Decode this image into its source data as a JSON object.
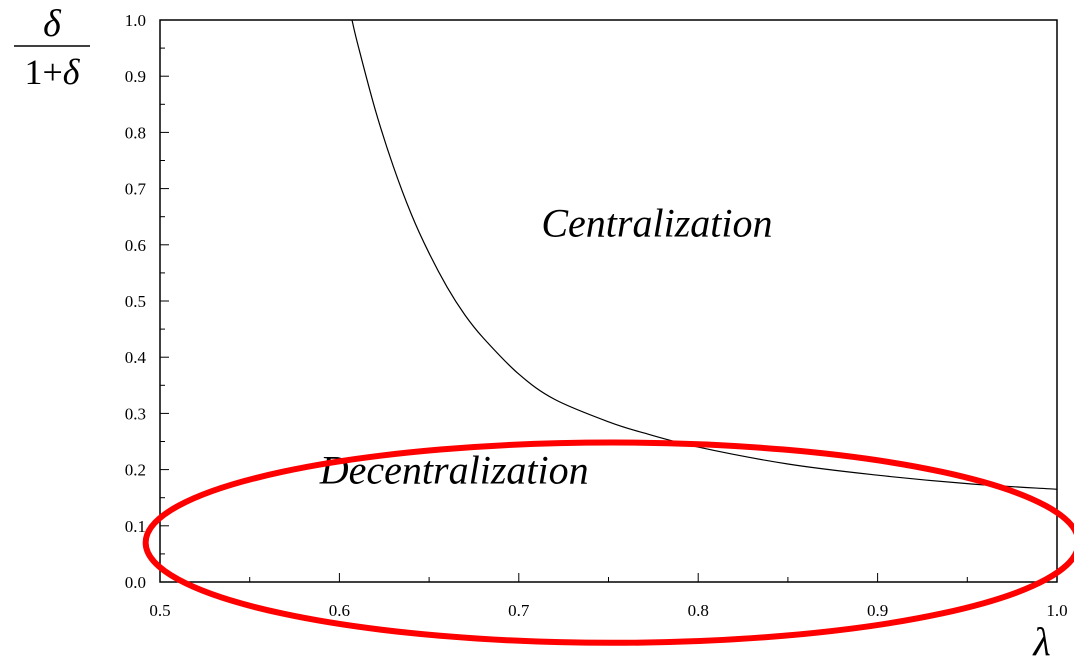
{
  "chart_data": {
    "type": "line",
    "title": "",
    "xlabel": "λ",
    "ylabel": {
      "numerator": "δ",
      "denominator_prefix": "1+",
      "denominator_symbol": "δ"
    },
    "xlim": [
      0.5,
      1.0
    ],
    "ylim": [
      0.0,
      1.0
    ],
    "x_ticks": [
      "0.5",
      "0.6",
      "0.7",
      "0.8",
      "0.9",
      "1.0"
    ],
    "y_ticks": [
      "0.0",
      "0.1",
      "0.2",
      "0.3",
      "0.4",
      "0.5",
      "0.6",
      "0.7",
      "0.8",
      "0.9",
      "1.0"
    ],
    "grid": false,
    "series": [
      {
        "x": [
          0.607,
          0.61,
          0.62,
          0.63,
          0.64,
          0.65,
          0.66,
          0.67,
          0.68,
          0.7,
          0.72,
          0.75,
          0.77,
          0.8,
          0.85,
          0.9,
          0.95,
          1.0
        ],
        "y": [
          1.0,
          0.96,
          0.84,
          0.74,
          0.655,
          0.585,
          0.525,
          0.475,
          0.435,
          0.37,
          0.325,
          0.285,
          0.265,
          0.24,
          0.21,
          0.19,
          0.175,
          0.165
        ],
        "color": "#000000"
      }
    ],
    "annotations": [
      {
        "text": "Centralization",
        "x": 0.777,
        "y": 0.64
      },
      {
        "text": "Decentralization",
        "x": 0.664,
        "y": 0.2
      }
    ],
    "highlight": {
      "shape": "ellipse",
      "color": "#ff0000",
      "center": [
        0.752,
        0.07
      ],
      "radius": [
        0.26,
        0.33
      ]
    }
  }
}
